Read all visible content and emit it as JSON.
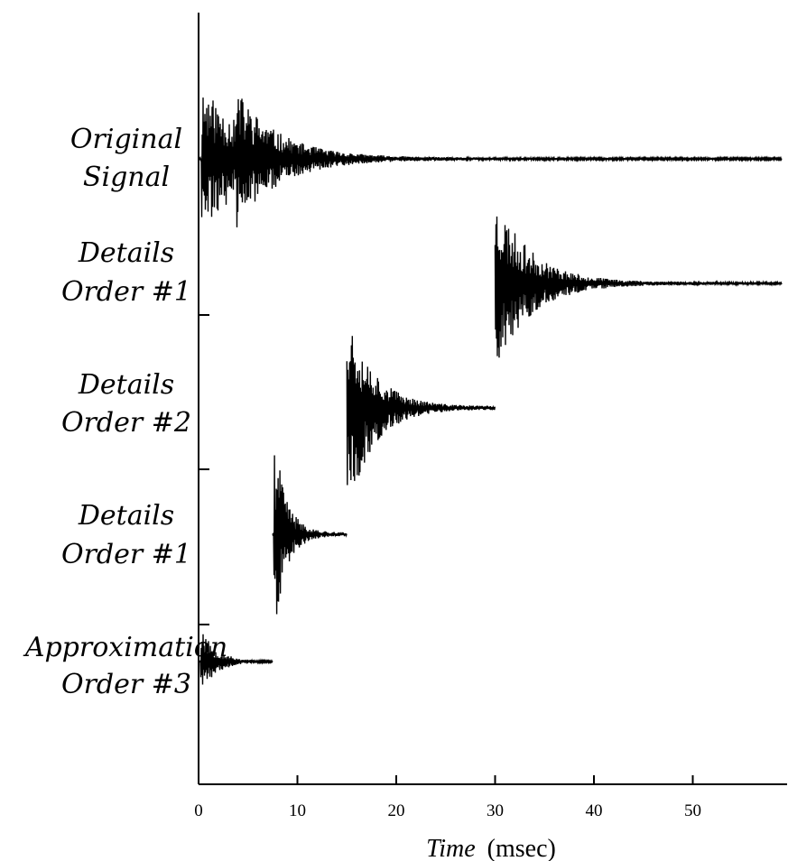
{
  "chart_data": {
    "type": "line",
    "title": "",
    "xlabel_italic": "Time",
    "xlabel_unit": "(msec)",
    "ylabel": "",
    "xlim": [
      0,
      59
    ],
    "x_ticks": [
      "0",
      "10",
      "20",
      "30",
      "40",
      "50"
    ],
    "grid": false,
    "legend": "none",
    "series": [
      {
        "name": "Original Signal",
        "label_lines": [
          "Original",
          "Signal"
        ],
        "x_start": 0,
        "x_end": 59,
        "impulses": [
          {
            "t": 0.3,
            "amplitude": 1.0,
            "decay_ms": 5.0
          },
          {
            "t": 3.8,
            "amplitude": 0.45,
            "decay_ms": 3.5
          }
        ],
        "seed": 11
      },
      {
        "name": "Details Order #1",
        "label_lines": [
          "Details",
          "Order #1"
        ],
        "x_start": 30,
        "x_end": 59,
        "impulses": [
          {
            "t": 30.0,
            "amplitude": 1.0,
            "decay_ms": 3.5
          }
        ],
        "seed": 23
      },
      {
        "name": "Details Order #2",
        "label_lines": [
          "Details",
          "Order #2"
        ],
        "x_start": 15,
        "x_end": 30,
        "impulses": [
          {
            "t": 15.0,
            "amplitude": 1.0,
            "decay_ms": 2.6
          }
        ],
        "seed": 37
      },
      {
        "name": "Details Order #1",
        "label_lines": [
          "Details",
          "Order #1"
        ],
        "x_start": 7.5,
        "x_end": 15,
        "impulses": [
          {
            "t": 7.6,
            "amplitude": 1.0,
            "decay_ms": 1.2
          }
        ],
        "seed": 41
      },
      {
        "name": "Approximation Order #3",
        "label_lines": [
          "Approximation",
          "Order #3"
        ],
        "x_start": 0,
        "x_end": 7.5,
        "impulses": [
          {
            "t": 0.2,
            "amplitude": 1.0,
            "decay_ms": 1.5
          }
        ],
        "seed": 53
      }
    ]
  }
}
